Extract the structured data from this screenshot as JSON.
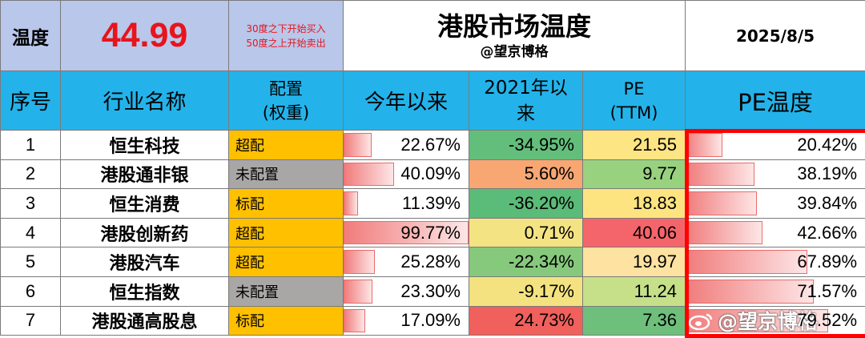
{
  "header": {
    "temp_label": "温度",
    "temp_value": "44.99",
    "rule_line1": "30度之下开始买入",
    "rule_line2": "50度之上开始卖出",
    "title": "港股市场温度",
    "author": "@望京博格",
    "date": "2025/8/5"
  },
  "columns": {
    "index": "序号",
    "name": "行业名称",
    "alloc_line1": "配置",
    "alloc_line2": "(权重)",
    "ytd": "今年以来",
    "since2021_line1": "2021年以",
    "since2021_line2": "来",
    "pe_line1": "PE",
    "pe_line2": "(TTM)",
    "pe_temp": "PE温度"
  },
  "rows": [
    {
      "index": "1",
      "name": "恒生科技",
      "alloc": "超配",
      "ytd": "22.67%",
      "ytd_value": 22.67,
      "since2021": "-34.95%",
      "pe": "21.55",
      "pe_temp": "20.42%",
      "pe_temp_value": 20.42
    },
    {
      "index": "2",
      "name": "港股通非银",
      "alloc": "未配置",
      "ytd": "40.09%",
      "ytd_value": 40.09,
      "since2021": "5.60%",
      "pe": "9.77",
      "pe_temp": "38.19%",
      "pe_temp_value": 38.19
    },
    {
      "index": "3",
      "name": "恒生消费",
      "alloc": "标配",
      "ytd": "11.39%",
      "ytd_value": 11.39,
      "since2021": "-36.20%",
      "pe": "18.83",
      "pe_temp": "39.84%",
      "pe_temp_value": 39.84
    },
    {
      "index": "4",
      "name": "港股创新药",
      "alloc": "超配",
      "ytd": "99.77%",
      "ytd_value": 99.77,
      "since2021": "0.71%",
      "pe": "40.06",
      "pe_temp": "42.66%",
      "pe_temp_value": 42.66
    },
    {
      "index": "5",
      "name": "港股汽车",
      "alloc": "超配",
      "ytd": "25.28%",
      "ytd_value": 25.28,
      "since2021": "-22.34%",
      "pe": "19.97",
      "pe_temp": "67.89%",
      "pe_temp_value": 67.89
    },
    {
      "index": "6",
      "name": "恒生指数",
      "alloc": "未配置",
      "ytd": "23.30%",
      "ytd_value": 23.3,
      "since2021": "-9.17%",
      "pe": "11.24",
      "pe_temp": "71.57%",
      "pe_temp_value": 71.57
    },
    {
      "index": "7",
      "name": "港股通高股息",
      "alloc": "标配",
      "ytd": "17.09%",
      "ytd_value": 17.09,
      "since2021": "24.73%",
      "pe": "7.36",
      "pe_temp": "79.52%",
      "pe_temp_value": 79.52
    }
  ],
  "colors": {
    "since2021": [
      "#63be7b",
      "#f8a672",
      "#5bbb78",
      "#f4e383",
      "#86c97c",
      "#f3e27f",
      "#f0605c"
    ],
    "pe": [
      "#fde583",
      "#99d27f",
      "#fee481",
      "#f4656b",
      "#fde2a1",
      "#c6e08a",
      "#6fbf7c"
    ]
  },
  "watermark": {
    "text": "@望京博格",
    "icon": "weibo-icon"
  }
}
